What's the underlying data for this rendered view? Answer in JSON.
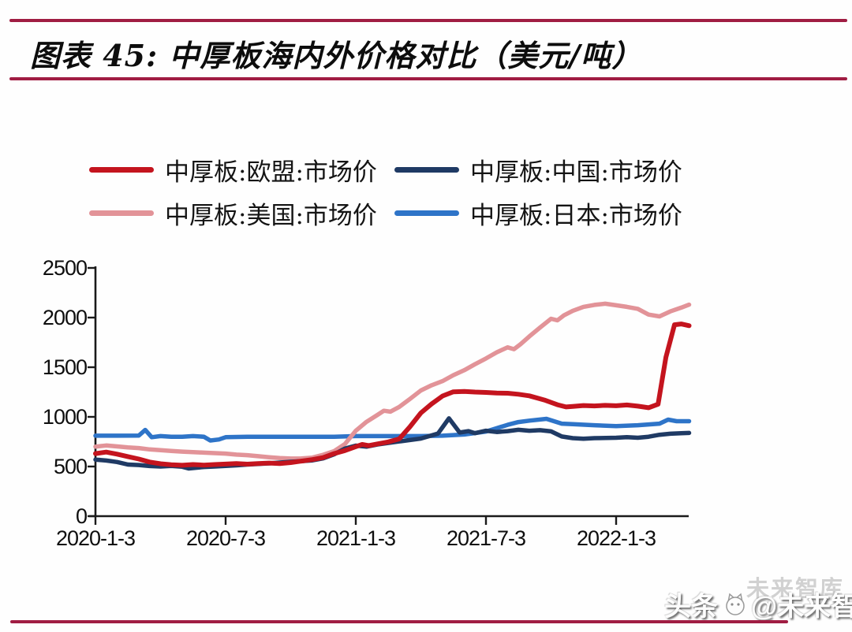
{
  "page": {
    "header": {
      "title": "图表 45:  中厚板海内外价格对比（美元/吨）"
    },
    "watermark": {
      "prefix": "头条",
      "handle": "@未来智库",
      "ghost": "未来智库"
    },
    "accent_color": "#A01D43"
  },
  "chart_data": {
    "type": "line",
    "title": "中厚板海内外价格对比（美元/吨）",
    "unit": "美元/吨",
    "grid": false,
    "legend_position": "top",
    "x_axis": {
      "tick_labels": [
        "2020-1-3",
        "2020-7-3",
        "2021-1-3",
        "2021-7-3",
        "2022-1-3"
      ],
      "tick_dates": [
        "2020-01-03",
        "2020-07-03",
        "2021-01-03",
        "2021-07-03",
        "2022-01-03"
      ]
    },
    "y_axis": {
      "min": 0,
      "max": 2500,
      "tick_values": [
        0,
        500,
        1000,
        1500,
        2000,
        2500
      ],
      "tick_labels": [
        "0",
        "500",
        "1000",
        "1500",
        "2000",
        "2500"
      ]
    },
    "series": [
      {
        "name": "中厚板:欧盟:市场价",
        "color": "#C4141E",
        "points": [
          [
            "2020-01-03",
            630
          ],
          [
            "2020-01-18",
            645
          ],
          [
            "2020-02-03",
            625
          ],
          [
            "2020-02-18",
            600
          ],
          [
            "2020-03-03",
            575
          ],
          [
            "2020-03-18",
            545
          ],
          [
            "2020-04-03",
            528
          ],
          [
            "2020-04-18",
            518
          ],
          [
            "2020-05-03",
            513
          ],
          [
            "2020-05-18",
            520
          ],
          [
            "2020-06-03",
            514
          ],
          [
            "2020-06-18",
            520
          ],
          [
            "2020-07-03",
            525
          ],
          [
            "2020-07-18",
            530
          ],
          [
            "2020-08-03",
            524
          ],
          [
            "2020-08-18",
            530
          ],
          [
            "2020-09-03",
            535
          ],
          [
            "2020-09-18",
            530
          ],
          [
            "2020-10-03",
            540
          ],
          [
            "2020-10-18",
            555
          ],
          [
            "2020-11-03",
            570
          ],
          [
            "2020-11-18",
            590
          ],
          [
            "2020-12-03",
            630
          ],
          [
            "2020-12-18",
            660
          ],
          [
            "2021-01-03",
            700
          ],
          [
            "2021-01-12",
            722
          ],
          [
            "2021-01-21",
            710
          ],
          [
            "2021-02-03",
            728
          ],
          [
            "2021-02-18",
            748
          ],
          [
            "2021-03-03",
            778
          ],
          [
            "2021-03-18",
            900
          ],
          [
            "2021-04-03",
            1040
          ],
          [
            "2021-04-18",
            1130
          ],
          [
            "2021-05-03",
            1210
          ],
          [
            "2021-05-18",
            1252
          ],
          [
            "2021-06-03",
            1256
          ],
          [
            "2021-06-18",
            1250
          ],
          [
            "2021-07-03",
            1246
          ],
          [
            "2021-07-18",
            1240
          ],
          [
            "2021-08-03",
            1238
          ],
          [
            "2021-08-18",
            1228
          ],
          [
            "2021-09-03",
            1212
          ],
          [
            "2021-09-24",
            1170
          ],
          [
            "2021-10-12",
            1122
          ],
          [
            "2021-10-24",
            1100
          ],
          [
            "2021-11-03",
            1105
          ],
          [
            "2021-11-18",
            1114
          ],
          [
            "2021-12-03",
            1110
          ],
          [
            "2021-12-18",
            1116
          ],
          [
            "2022-01-03",
            1112
          ],
          [
            "2022-01-18",
            1120
          ],
          [
            "2022-02-03",
            1108
          ],
          [
            "2022-02-18",
            1092
          ],
          [
            "2022-03-01",
            1128
          ],
          [
            "2022-03-12",
            1600
          ],
          [
            "2022-03-24",
            1928
          ],
          [
            "2022-04-03",
            1936
          ],
          [
            "2022-04-14",
            1918
          ]
        ]
      },
      {
        "name": "中厚板:中国:市场价",
        "color": "#1F3A64",
        "points": [
          [
            "2020-01-03",
            570
          ],
          [
            "2020-01-18",
            560
          ],
          [
            "2020-02-03",
            545
          ],
          [
            "2020-02-18",
            520
          ],
          [
            "2020-03-03",
            515
          ],
          [
            "2020-03-18",
            505
          ],
          [
            "2020-04-03",
            500
          ],
          [
            "2020-04-18",
            506
          ],
          [
            "2020-05-03",
            498
          ],
          [
            "2020-05-12",
            480
          ],
          [
            "2020-06-03",
            495
          ],
          [
            "2020-06-18",
            500
          ],
          [
            "2020-07-03",
            506
          ],
          [
            "2020-07-18",
            512
          ],
          [
            "2020-08-03",
            520
          ],
          [
            "2020-09-03",
            532
          ],
          [
            "2020-10-03",
            548
          ],
          [
            "2020-11-03",
            562
          ],
          [
            "2020-11-18",
            582
          ],
          [
            "2020-12-03",
            622
          ],
          [
            "2020-12-18",
            680
          ],
          [
            "2021-01-03",
            710
          ],
          [
            "2021-01-18",
            700
          ],
          [
            "2021-02-03",
            722
          ],
          [
            "2021-03-03",
            752
          ],
          [
            "2021-04-03",
            782
          ],
          [
            "2021-04-27",
            832
          ],
          [
            "2021-05-12",
            985
          ],
          [
            "2021-05-27",
            842
          ],
          [
            "2021-06-09",
            856
          ],
          [
            "2021-06-18",
            836
          ],
          [
            "2021-07-03",
            860
          ],
          [
            "2021-07-18",
            848
          ],
          [
            "2021-08-03",
            856
          ],
          [
            "2021-08-18",
            870
          ],
          [
            "2021-09-03",
            860
          ],
          [
            "2021-09-18",
            866
          ],
          [
            "2021-10-03",
            854
          ],
          [
            "2021-10-18",
            802
          ],
          [
            "2021-11-03",
            786
          ],
          [
            "2021-11-18",
            780
          ],
          [
            "2021-12-03",
            786
          ],
          [
            "2022-01-03",
            790
          ],
          [
            "2022-01-18",
            796
          ],
          [
            "2022-02-03",
            790
          ],
          [
            "2022-02-18",
            800
          ],
          [
            "2022-03-03",
            820
          ],
          [
            "2022-03-18",
            830
          ],
          [
            "2022-04-03",
            836
          ],
          [
            "2022-04-14",
            838
          ]
        ]
      },
      {
        "name": "中厚板:美国:市场价",
        "color": "#E29398",
        "points": [
          [
            "2020-01-03",
            700
          ],
          [
            "2020-01-18",
            712
          ],
          [
            "2020-02-03",
            702
          ],
          [
            "2020-02-18",
            692
          ],
          [
            "2020-03-03",
            686
          ],
          [
            "2020-03-18",
            672
          ],
          [
            "2020-04-03",
            664
          ],
          [
            "2020-04-18",
            656
          ],
          [
            "2020-05-03",
            650
          ],
          [
            "2020-05-18",
            645
          ],
          [
            "2020-06-03",
            640
          ],
          [
            "2020-06-18",
            635
          ],
          [
            "2020-07-03",
            630
          ],
          [
            "2020-07-18",
            620
          ],
          [
            "2020-08-03",
            614
          ],
          [
            "2020-08-18",
            604
          ],
          [
            "2020-09-03",
            594
          ],
          [
            "2020-09-18",
            586
          ],
          [
            "2020-10-03",
            580
          ],
          [
            "2020-10-18",
            582
          ],
          [
            "2020-11-03",
            590
          ],
          [
            "2020-11-18",
            618
          ],
          [
            "2020-12-03",
            655
          ],
          [
            "2020-12-18",
            725
          ],
          [
            "2021-01-03",
            860
          ],
          [
            "2021-01-18",
            950
          ],
          [
            "2021-02-03",
            1020
          ],
          [
            "2021-02-12",
            1062
          ],
          [
            "2021-02-21",
            1052
          ],
          [
            "2021-03-03",
            1100
          ],
          [
            "2021-03-18",
            1180
          ],
          [
            "2021-04-03",
            1266
          ],
          [
            "2021-04-18",
            1318
          ],
          [
            "2021-05-03",
            1360
          ],
          [
            "2021-05-18",
            1420
          ],
          [
            "2021-06-03",
            1470
          ],
          [
            "2021-06-18",
            1530
          ],
          [
            "2021-07-03",
            1588
          ],
          [
            "2021-07-18",
            1650
          ],
          [
            "2021-08-03",
            1700
          ],
          [
            "2021-08-12",
            1682
          ],
          [
            "2021-08-21",
            1732
          ],
          [
            "2021-09-03",
            1810
          ],
          [
            "2021-09-18",
            1900
          ],
          [
            "2021-10-03",
            1988
          ],
          [
            "2021-10-12",
            1972
          ],
          [
            "2021-10-21",
            2022
          ],
          [
            "2021-11-03",
            2068
          ],
          [
            "2021-11-18",
            2108
          ],
          [
            "2021-12-03",
            2128
          ],
          [
            "2021-12-18",
            2140
          ],
          [
            "2022-01-03",
            2124
          ],
          [
            "2022-01-18",
            2108
          ],
          [
            "2022-02-03",
            2088
          ],
          [
            "2022-02-18",
            2030
          ],
          [
            "2022-03-03",
            2012
          ],
          [
            "2022-03-18",
            2062
          ],
          [
            "2022-04-03",
            2100
          ],
          [
            "2022-04-14",
            2130
          ]
        ]
      },
      {
        "name": "中厚板:日本:市场价",
        "color": "#2E74C8",
        "points": [
          [
            "2020-01-03",
            810
          ],
          [
            "2020-02-03",
            810
          ],
          [
            "2020-03-03",
            812
          ],
          [
            "2020-03-12",
            868
          ],
          [
            "2020-03-21",
            795
          ],
          [
            "2020-04-03",
            806
          ],
          [
            "2020-04-18",
            800
          ],
          [
            "2020-05-03",
            800
          ],
          [
            "2020-05-18",
            806
          ],
          [
            "2020-06-03",
            800
          ],
          [
            "2020-06-12",
            762
          ],
          [
            "2020-06-24",
            772
          ],
          [
            "2020-07-03",
            795
          ],
          [
            "2020-08-03",
            800
          ],
          [
            "2020-09-03",
            800
          ],
          [
            "2020-10-03",
            800
          ],
          [
            "2020-11-03",
            800
          ],
          [
            "2020-12-03",
            800
          ],
          [
            "2021-01-03",
            806
          ],
          [
            "2021-02-03",
            806
          ],
          [
            "2021-03-03",
            806
          ],
          [
            "2021-04-03",
            806
          ],
          [
            "2021-05-03",
            810
          ],
          [
            "2021-06-03",
            822
          ],
          [
            "2021-07-03",
            852
          ],
          [
            "2021-08-03",
            920
          ],
          [
            "2021-08-18",
            948
          ],
          [
            "2021-09-03",
            962
          ],
          [
            "2021-09-27",
            980
          ],
          [
            "2021-10-18",
            932
          ],
          [
            "2021-11-03",
            926
          ],
          [
            "2021-12-03",
            916
          ],
          [
            "2022-01-03",
            906
          ],
          [
            "2022-02-03",
            916
          ],
          [
            "2022-03-03",
            932
          ],
          [
            "2022-03-15",
            972
          ],
          [
            "2022-03-27",
            956
          ],
          [
            "2022-04-14",
            956
          ]
        ]
      }
    ]
  }
}
